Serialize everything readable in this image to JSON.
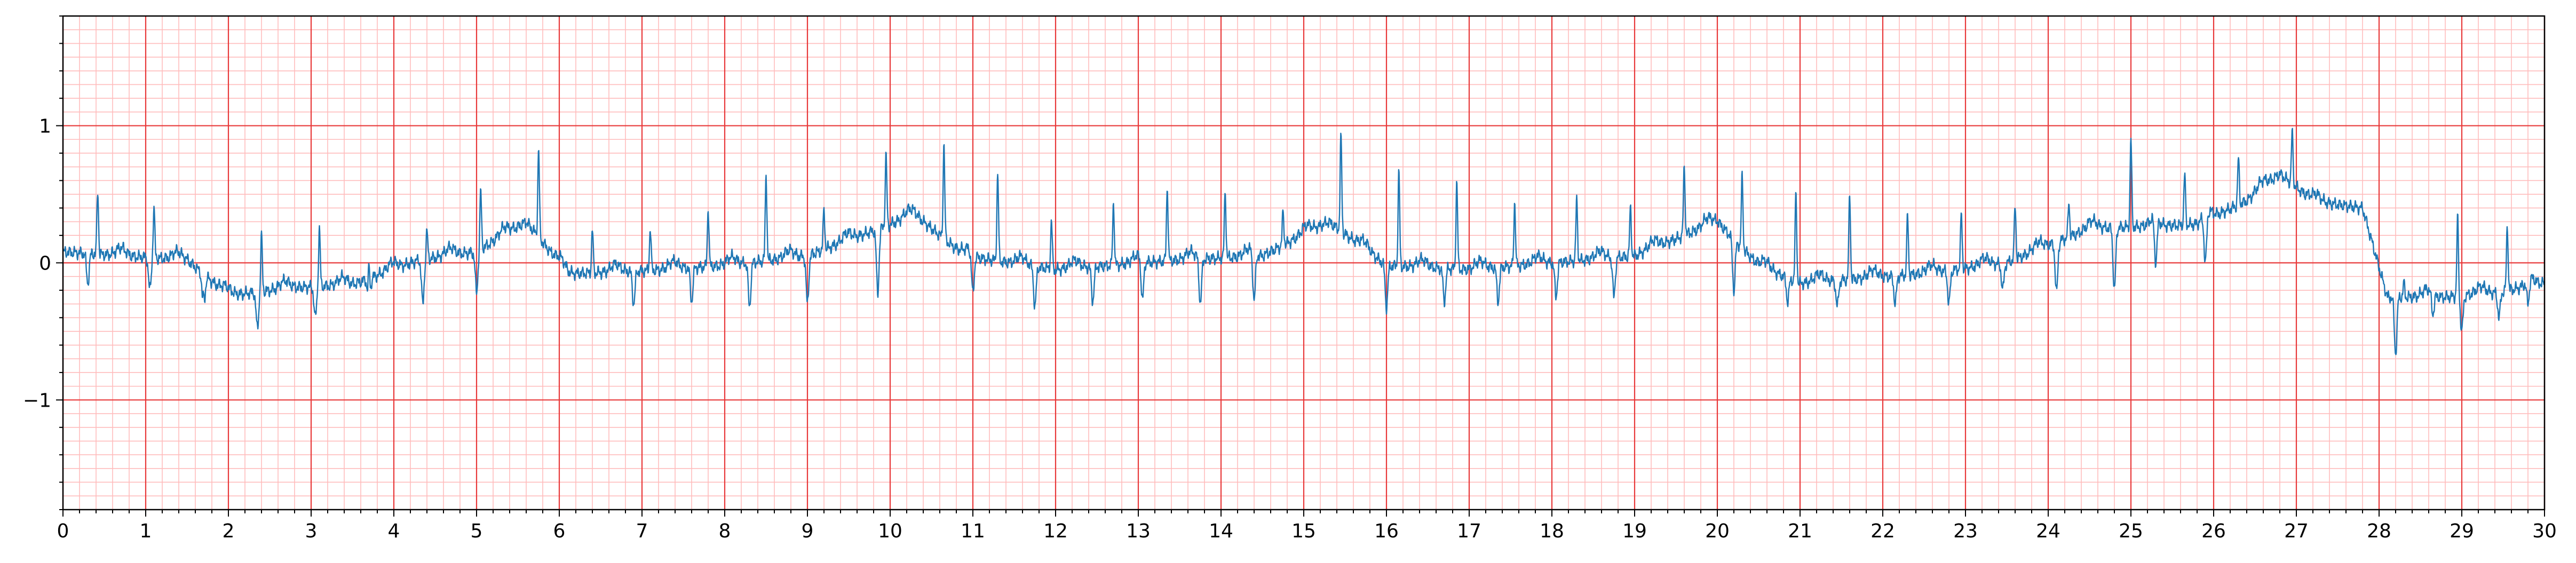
{
  "chart_data": {
    "type": "line",
    "title": "",
    "xlabel": "",
    "ylabel": "",
    "xlim": [
      0,
      30
    ],
    "ylim": [
      -1.8,
      1.8
    ],
    "x_ticks": [
      0,
      1,
      2,
      3,
      4,
      5,
      6,
      7,
      8,
      9,
      10,
      11,
      12,
      13,
      14,
      15,
      16,
      17,
      18,
      19,
      20,
      21,
      22,
      23,
      24,
      25,
      26,
      27,
      28,
      29,
      30
    ],
    "x_tick_labels": [
      "0",
      "1",
      "2",
      "3",
      "4",
      "5",
      "6",
      "7",
      "8",
      "9",
      "10",
      "11",
      "12",
      "13",
      "14",
      "15",
      "16",
      "17",
      "18",
      "19",
      "20",
      "21",
      "22",
      "23",
      "24",
      "25",
      "26",
      "27",
      "28",
      "29",
      "30"
    ],
    "y_ticks": [
      -1,
      0,
      1
    ],
    "y_tick_labels": [
      "−1",
      "0",
      "1"
    ],
    "grid": {
      "major": true,
      "minor": true,
      "major_x_step": 1,
      "major_y_step": 1,
      "minor_x_step": 0.2,
      "minor_y_step": 0.1
    },
    "colors": {
      "line": "#1f77b4",
      "major_grid": "#e8393a",
      "minor_grid": "#ffbcbc",
      "axes": "#000000"
    },
    "series": [
      {
        "baseline": [
          [
            0,
            0.08
          ],
          [
            1.5,
            0.02
          ],
          [
            2.0,
            -0.24
          ],
          [
            2.8,
            -0.18
          ],
          [
            3.5,
            -0.16
          ],
          [
            4.3,
            0.02
          ],
          [
            5.0,
            0.08
          ],
          [
            5.6,
            0.3
          ],
          [
            6.1,
            -0.08
          ],
          [
            7.0,
            -0.06
          ],
          [
            8.0,
            -0.02
          ],
          [
            9.0,
            0.05
          ],
          [
            10.3,
            0.35
          ],
          [
            10.9,
            0.05
          ],
          [
            12.0,
            -0.05
          ],
          [
            13.5,
            0.02
          ],
          [
            14.5,
            0.05
          ],
          [
            15.3,
            0.3
          ],
          [
            16.0,
            -0.02
          ],
          [
            17.0,
            -0.05
          ],
          [
            18.0,
            0.0
          ],
          [
            19.0,
            0.05
          ],
          [
            20.0,
            0.3
          ],
          [
            20.5,
            -0.02
          ],
          [
            21.0,
            -0.15
          ],
          [
            22.5,
            -0.08
          ],
          [
            23.5,
            0.0
          ],
          [
            24.5,
            0.25
          ],
          [
            25.8,
            0.28
          ],
          [
            26.4,
            0.45
          ],
          [
            26.8,
            0.65
          ],
          [
            27.2,
            0.45
          ],
          [
            27.8,
            0.4
          ],
          [
            28.1,
            -0.25
          ],
          [
            28.8,
            -0.25
          ],
          [
            29.4,
            -0.22
          ],
          [
            30.0,
            -0.15
          ]
        ],
        "beats": [
          [
            0.42,
            0.52
          ],
          [
            1.1,
            0.4
          ],
          [
            1.7,
            0.12
          ],
          [
            2.4,
            0.2
          ],
          [
            3.1,
            0.25
          ],
          [
            3.7,
            0.24
          ],
          [
            4.4,
            0.23
          ],
          [
            5.05,
            0.52
          ],
          [
            5.75,
            0.82
          ],
          [
            6.4,
            0.24
          ],
          [
            7.1,
            0.25
          ],
          [
            7.8,
            0.4
          ],
          [
            8.5,
            0.65
          ],
          [
            9.2,
            0.39
          ],
          [
            9.95,
            0.78
          ],
          [
            10.65,
            0.86
          ],
          [
            11.3,
            0.65
          ],
          [
            11.95,
            0.3
          ],
          [
            12.7,
            0.44
          ],
          [
            13.35,
            0.55
          ],
          [
            14.05,
            0.52
          ],
          [
            14.75,
            0.37
          ],
          [
            15.45,
            0.92
          ],
          [
            16.15,
            0.66
          ],
          [
            16.85,
            0.59
          ],
          [
            17.55,
            0.44
          ],
          [
            18.3,
            0.46
          ],
          [
            18.95,
            0.4
          ],
          [
            19.6,
            0.7
          ],
          [
            20.3,
            0.63
          ],
          [
            20.95,
            0.5
          ],
          [
            21.6,
            0.5
          ],
          [
            22.3,
            0.34
          ],
          [
            22.95,
            0.36
          ],
          [
            23.6,
            0.42
          ],
          [
            24.25,
            0.44
          ],
          [
            25.0,
            0.9
          ],
          [
            25.65,
            0.64
          ],
          [
            26.3,
            0.76
          ],
          [
            26.95,
            0.95
          ],
          [
            28.3,
            -0.15
          ],
          [
            28.95,
            0.32
          ],
          [
            29.55,
            0.27
          ]
        ],
        "troughs": [
          [
            0.3,
            -0.15
          ],
          [
            1.05,
            -0.2
          ],
          [
            1.7,
            -0.45
          ],
          [
            2.35,
            -0.48
          ],
          [
            3.05,
            -0.4
          ],
          [
            3.7,
            -0.38
          ],
          [
            4.35,
            -0.3
          ],
          [
            5.0,
            -0.22
          ],
          [
            6.1,
            -0.08
          ],
          [
            6.9,
            -0.3
          ],
          [
            7.6,
            -0.28
          ],
          [
            8.3,
            -0.32
          ],
          [
            9.0,
            -0.3
          ],
          [
            9.85,
            -0.22
          ],
          [
            11.0,
            -0.25
          ],
          [
            11.75,
            -0.32
          ],
          [
            12.45,
            -0.28
          ],
          [
            13.05,
            -0.3
          ],
          [
            13.75,
            -0.3
          ],
          [
            14.4,
            -0.3
          ],
          [
            16.0,
            -0.32
          ],
          [
            16.7,
            -0.28
          ],
          [
            17.35,
            -0.28
          ],
          [
            18.05,
            -0.25
          ],
          [
            18.75,
            -0.25
          ],
          [
            20.2,
            -0.2
          ],
          [
            20.85,
            -0.28
          ],
          [
            21.45,
            -0.32
          ],
          [
            22.15,
            -0.3
          ],
          [
            22.8,
            -0.3
          ],
          [
            23.45,
            -0.2
          ],
          [
            24.1,
            -0.22
          ],
          [
            24.8,
            -0.2
          ],
          [
            25.3,
            -0.05
          ],
          [
            25.9,
            -0.05
          ],
          [
            28.2,
            -0.66
          ],
          [
            28.65,
            -0.4
          ],
          [
            29.0,
            -0.5
          ],
          [
            29.45,
            -0.4
          ],
          [
            29.8,
            -0.35
          ]
        ]
      }
    ]
  }
}
